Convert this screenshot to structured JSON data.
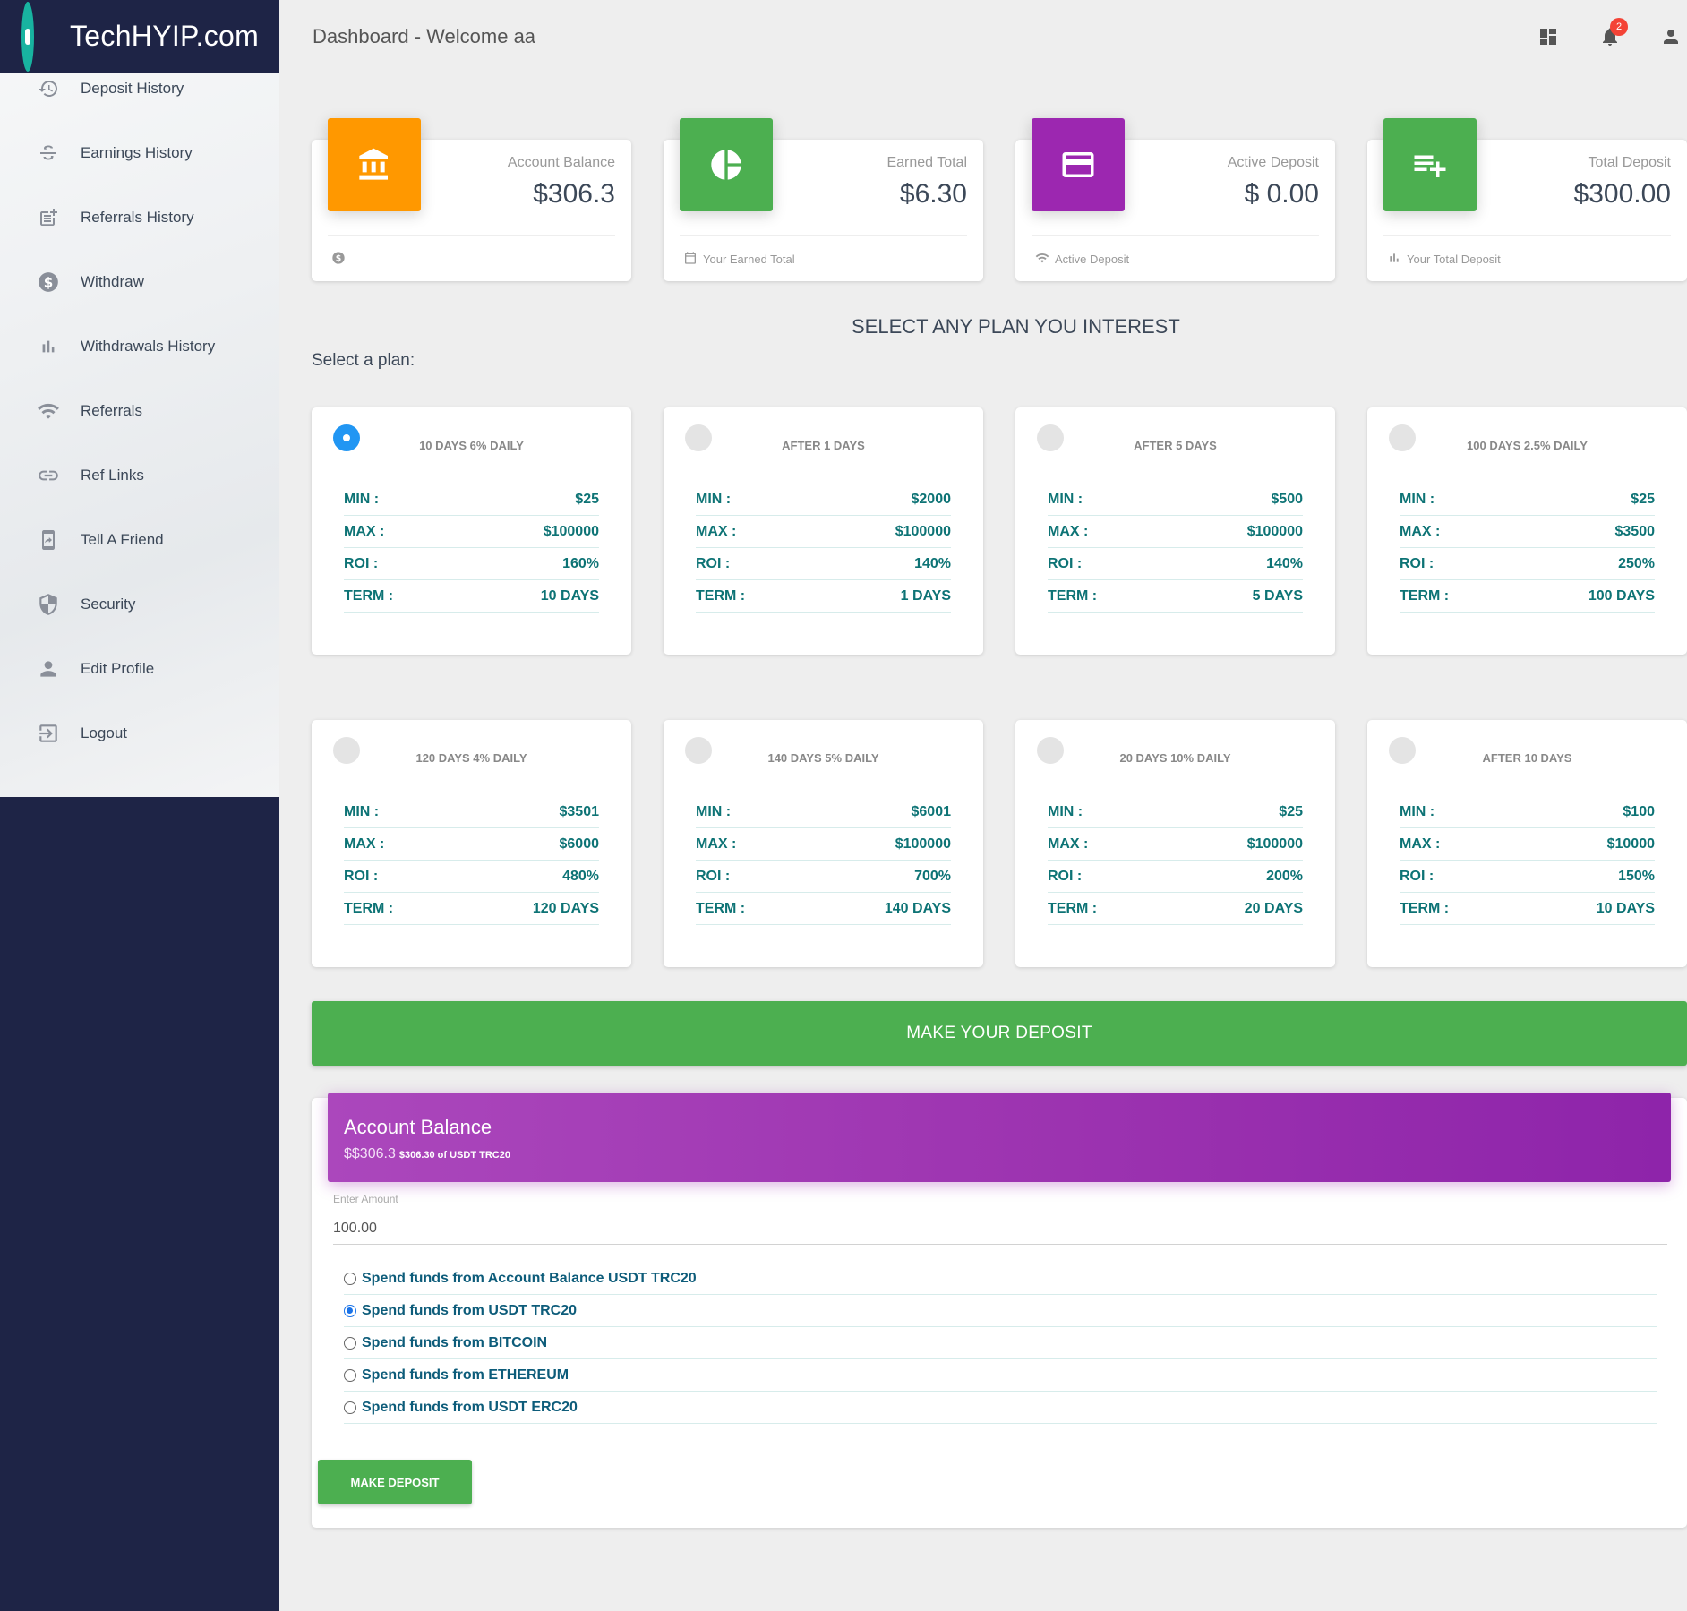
{
  "brand": {
    "name": "TechHYIP.com"
  },
  "header": {
    "title": "Dashboard - Welcome aa",
    "notification_count": "2"
  },
  "sidebar": {
    "items": [
      {
        "label": "Deposit History",
        "icon": "history-icon"
      },
      {
        "label": "Earnings History",
        "icon": "strikethrough-s-icon"
      },
      {
        "label": "Referrals History",
        "icon": "post-add-icon"
      },
      {
        "label": "Withdraw",
        "icon": "dollar-circle-icon"
      },
      {
        "label": "Withdrawals History",
        "icon": "bar-chart-icon"
      },
      {
        "label": "Referrals",
        "icon": "wifi-icon"
      },
      {
        "label": "Ref Links",
        "icon": "link-icon"
      },
      {
        "label": "Tell A Friend",
        "icon": "share-phone-icon"
      },
      {
        "label": "Security",
        "icon": "shield-icon"
      },
      {
        "label": "Edit Profile",
        "icon": "person-icon"
      },
      {
        "label": "Logout",
        "icon": "logout-icon"
      }
    ]
  },
  "stats": [
    {
      "label": "Account Balance",
      "value": "$306.3",
      "footer": "",
      "color": "#ff9800",
      "icon": "bank-icon",
      "footer_icon": "dollar-circle-icon"
    },
    {
      "label": "Earned Total",
      "value": "$6.30",
      "footer": "Your Earned Total",
      "color": "#4caf50",
      "icon": "pie-chart-icon",
      "footer_icon": "calendar-icon"
    },
    {
      "label": "Active Deposit",
      "value": "$ 0.00",
      "footer": "Active Deposit",
      "color": "#9c27b0",
      "icon": "credit-card-icon",
      "footer_icon": "wifi-icon"
    },
    {
      "label": "Total Deposit",
      "value": "$300.00",
      "footer": "Your Total Deposit",
      "color": "#4caf50",
      "icon": "playlist-add-icon",
      "footer_icon": "bar-chart-icon"
    }
  ],
  "plans_section": {
    "title": "SELECT ANY PLAN YOU INTEREST",
    "select_label": "Select a plan:"
  },
  "row_labels": {
    "min": "MIN :",
    "max": "MAX :",
    "roi": "ROI :",
    "term": "TERM :"
  },
  "plans": [
    {
      "name": "10 DAYS 6% DAILY",
      "min": "$25",
      "max": "$100000",
      "roi": "160%",
      "term": "10 DAYS",
      "selected": true
    },
    {
      "name": "AFTER 1 DAYS",
      "min": "$2000",
      "max": "$100000",
      "roi": "140%",
      "term": "1 DAYS",
      "selected": false
    },
    {
      "name": "AFTER 5 DAYS",
      "min": "$500",
      "max": "$100000",
      "roi": "140%",
      "term": "5 DAYS",
      "selected": false
    },
    {
      "name": "100 DAYS 2.5% DAILY",
      "min": "$25",
      "max": "$3500",
      "roi": "250%",
      "term": "100 DAYS",
      "selected": false
    },
    {
      "name": "120 DAYS 4% DAILY",
      "min": "$3501",
      "max": "$6000",
      "roi": "480%",
      "term": "120 DAYS",
      "selected": false
    },
    {
      "name": "140 DAYS 5% DAILY",
      "min": "$6001",
      "max": "$100000",
      "roi": "700%",
      "term": "140 DAYS",
      "selected": false
    },
    {
      "name": "20 DAYS 10% DAILY",
      "min": "$25",
      "max": "$100000",
      "roi": "200%",
      "term": "20 DAYS",
      "selected": false
    },
    {
      "name": "AFTER 10 DAYS",
      "min": "$100",
      "max": "$10000",
      "roi": "150%",
      "term": "10 DAYS",
      "selected": false
    }
  ],
  "deposit_bar": {
    "label": "MAKE YOUR DEPOSIT"
  },
  "deposit_form": {
    "title": "Account Balance",
    "balance": "$$306.3",
    "balance_detail": "$306.30 of USDT TRC20",
    "amount_label": "Enter Amount",
    "amount_value": "100.00",
    "options": [
      {
        "label": "Spend funds from Account Balance USDT TRC20",
        "checked": false
      },
      {
        "label": "Spend funds from USDT TRC20",
        "checked": true
      },
      {
        "label": "Spend funds from BITCOIN",
        "checked": false
      },
      {
        "label": "Spend funds from ETHEREUM",
        "checked": false
      },
      {
        "label": "Spend funds from USDT ERC20",
        "checked": false
      }
    ],
    "submit_label": "MAKE DEPOSIT"
  }
}
